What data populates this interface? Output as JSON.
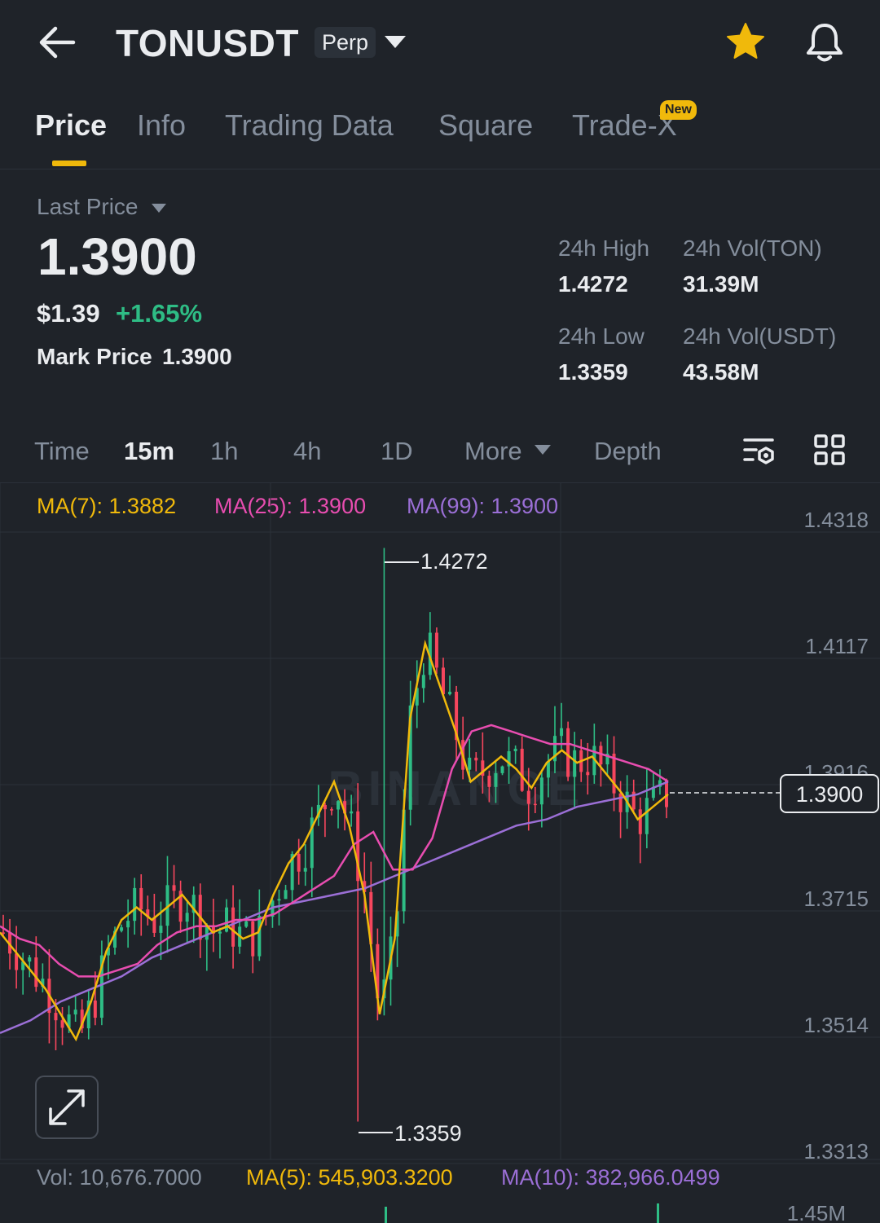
{
  "header": {
    "symbol": "TONUSDT",
    "contract_type": "Perp",
    "icons": [
      "back-arrow-icon",
      "chevron-down-icon",
      "star-icon",
      "bell-icon"
    ],
    "star_color": "#f0b90b"
  },
  "tabs": [
    {
      "label": "Price",
      "active": true
    },
    {
      "label": "Info",
      "active": false
    },
    {
      "label": "Trading Data",
      "active": false
    },
    {
      "label": "Square",
      "active": false
    },
    {
      "label": "Trade-X",
      "active": false,
      "badge": "New"
    }
  ],
  "summary": {
    "last_price_label": "Last Price",
    "last_price": "1.3900",
    "usd_price": "$1.39",
    "change_pct": "+1.65%",
    "mark_price_label": "Mark Price",
    "mark_price": "1.3900",
    "high_label": "24h High",
    "high": "1.4272",
    "vol_ton_label": "24h Vol(TON)",
    "vol_ton": "31.39M",
    "low_label": "24h Low",
    "low": "1.3359",
    "vol_usdt_label": "24h Vol(USDT)",
    "vol_usdt": "43.58M"
  },
  "timeframes": {
    "items": [
      "Time",
      "15m",
      "1h",
      "4h",
      "1D",
      "More",
      "Depth"
    ],
    "active": "15m"
  },
  "indicators": {
    "ma7": "MA(7): 1.3882",
    "ma25": "MA(25): 1.3900",
    "ma99": "MA(99): 1.3900",
    "vol": "Vol: 10,676.7000",
    "vol_ma5": "MA(5): 545,903.3200",
    "vol_ma10": "MA(10): 382,966.0499"
  },
  "colors": {
    "up": "#2ebd85",
    "down": "#f6465d",
    "ma7": "#f0b90b",
    "ma25": "#e84db0",
    "ma99": "#9b6fd6",
    "accent": "#f0b90b"
  },
  "chart_data": {
    "type": "candlestick",
    "y_ticks": [
      "1.4318",
      "1.4117",
      "1.3916",
      "1.3715",
      "1.3514",
      "1.3313"
    ],
    "ylim": [
      1.33,
      1.44
    ],
    "high_annotation": "1.4272",
    "low_annotation": "1.3359",
    "current_price_label": "1.3900",
    "volume_tick": "1.45M",
    "watermark": "BINANCE",
    "ma7": [
      1.366,
      1.363,
      1.36,
      1.357,
      1.353,
      1.349,
      1.355,
      1.363,
      1.368,
      1.37,
      1.368,
      1.37,
      1.372,
      1.369,
      1.366,
      1.367,
      1.365,
      1.366,
      1.372,
      1.377,
      1.38,
      1.385,
      1.39,
      1.383,
      1.372,
      1.353,
      1.365,
      1.4,
      1.412,
      1.405,
      1.398,
      1.39,
      1.392,
      1.394,
      1.392,
      1.389,
      1.393,
      1.395,
      1.393,
      1.394,
      1.391,
      1.388,
      1.384,
      1.386,
      1.388
    ],
    "ma25": [
      1.367,
      1.365,
      1.364,
      1.361,
      1.359,
      1.359,
      1.36,
      1.361,
      1.364,
      1.366,
      1.367,
      1.367,
      1.368,
      1.368,
      1.369,
      1.371,
      1.373,
      1.375,
      1.38,
      1.382,
      1.376,
      1.376,
      1.381,
      1.392,
      1.398,
      1.399,
      1.398,
      1.397,
      1.396,
      1.396,
      1.395,
      1.394,
      1.393,
      1.392,
      1.39
    ],
    "ma99": [
      1.35,
      1.352,
      1.355,
      1.357,
      1.359,
      1.362,
      1.364,
      1.366,
      1.368,
      1.37,
      1.371,
      1.372,
      1.373,
      1.375,
      1.377,
      1.379,
      1.381,
      1.383,
      1.384,
      1.386,
      1.387,
      1.388,
      1.39
    ]
  }
}
